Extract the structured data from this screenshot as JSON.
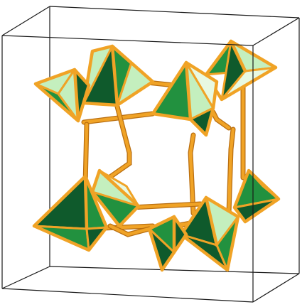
{
  "figure": {
    "subject": "crystal-structure-polyhedral-model",
    "background": "#ffffff"
  },
  "colors": {
    "cell_edge": "#1a1a1a",
    "bond": "#f0a326",
    "bond_outline": "#b96e10",
    "face_dark": "#0f5a2c",
    "face_mid": "#22913f",
    "face_light": "#c4efbe",
    "face_pale": "#e8f9e2"
  },
  "model": {
    "unit_cell": "cube",
    "polyhedron_type": "tetrahedron",
    "polyhedron_count": 8,
    "connector_type": "bond-rod"
  }
}
